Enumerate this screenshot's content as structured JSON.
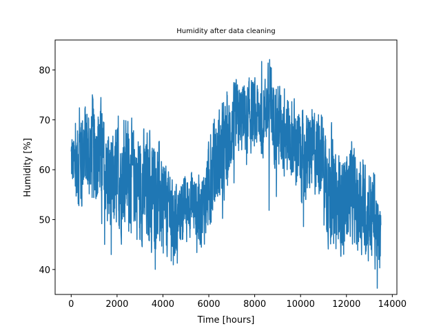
{
  "chart_data": {
    "type": "line",
    "title": "Humidity after data cleaning",
    "xlabel": "Time [hours]",
    "ylabel": "Humidity [%]",
    "xlim": [
      -700,
      14200
    ],
    "ylim": [
      35,
      86
    ],
    "xticks": [
      0,
      2000,
      4000,
      6000,
      8000,
      10000,
      12000,
      14000
    ],
    "yticks": [
      40,
      50,
      60,
      70,
      80
    ],
    "grid": false,
    "series": [
      {
        "color": "#1f77b4",
        "x": [
          0,
          200,
          400,
          600,
          800,
          1000,
          1200,
          1400,
          1600,
          1800,
          2000,
          2200,
          2400,
          2600,
          2800,
          3000,
          3200,
          3400,
          3600,
          3800,
          4000,
          4200,
          4400,
          4600,
          4800,
          5000,
          5200,
          5400,
          5600,
          5800,
          6000,
          6200,
          6400,
          6600,
          6800,
          7000,
          7200,
          7400,
          7600,
          7800,
          8000,
          8200,
          8400,
          8600,
          8800,
          9000,
          9200,
          9400,
          9600,
          9800,
          10000,
          10200,
          10400,
          10600,
          10800,
          11000,
          11200,
          11400,
          11600,
          11800,
          12000,
          12200,
          12400,
          12600,
          12800,
          13000,
          13200,
          13400,
          13500
        ],
        "mean": [
          62,
          60,
          63,
          64,
          63,
          63,
          64,
          62,
          58,
          57,
          58,
          58,
          60,
          59,
          58,
          57,
          56,
          56,
          56,
          55,
          52,
          52,
          51,
          50,
          52,
          53,
          54,
          53,
          52,
          53,
          57,
          60,
          62,
          63,
          64,
          68,
          70,
          70,
          71,
          71,
          70,
          71,
          72,
          73,
          71,
          69,
          68,
          67,
          66,
          65,
          63,
          62,
          63,
          64,
          64,
          63,
          56,
          54,
          53,
          53,
          55,
          56,
          54,
          52,
          52,
          51,
          51,
          47,
          45
        ],
        "amp": [
          6,
          7,
          10,
          10,
          9,
          10,
          11,
          9,
          10,
          10,
          10,
          10,
          10,
          10,
          10,
          11,
          11,
          11,
          10,
          10,
          9,
          9,
          9,
          8,
          6,
          6,
          6,
          6,
          7,
          7,
          9,
          9,
          9,
          9,
          9,
          7,
          7,
          7,
          7,
          7,
          7,
          7,
          6,
          8,
          8,
          8,
          8,
          8,
          8,
          8,
          8,
          8,
          8,
          8,
          8,
          8,
          10,
          10,
          9,
          9,
          9,
          9,
          9,
          9,
          9,
          9,
          9,
          7,
          6
        ],
        "max": [
          66,
          70,
          74,
          75,
          74,
          78,
          74,
          75,
          71,
          69,
          72,
          70,
          70,
          72,
          74,
          70,
          76,
          68,
          67,
          67,
          62,
          60,
          58,
          57,
          57,
          59,
          60,
          63,
          58,
          59,
          66,
          70,
          73,
          75,
          76,
          79,
          81,
          79,
          80,
          78,
          79,
          80,
          84,
          84,
          79,
          78,
          76,
          77,
          76,
          75,
          74,
          74,
          75,
          75,
          74,
          73,
          73,
          69,
          65,
          73,
          65,
          66,
          64,
          62,
          63,
          76,
          73,
          58,
          54
        ],
        "min": [
          53,
          48,
          53,
          52,
          55,
          53,
          56,
          45,
          45,
          42,
          49,
          44,
          47,
          46,
          41,
          46,
          43,
          46,
          40,
          40,
          43,
          42,
          41,
          39,
          45,
          44,
          45,
          44,
          41,
          41,
          45,
          50,
          49,
          50,
          51,
          56,
          58,
          57,
          59,
          62,
          61,
          64,
          61,
          52,
          50,
          56,
          55,
          52,
          51,
          51,
          49,
          48,
          49,
          50,
          49,
          49,
          43,
          38,
          40,
          41,
          44,
          45,
          44,
          41,
          40,
          37,
          37,
          35,
          37
        ]
      }
    ]
  }
}
